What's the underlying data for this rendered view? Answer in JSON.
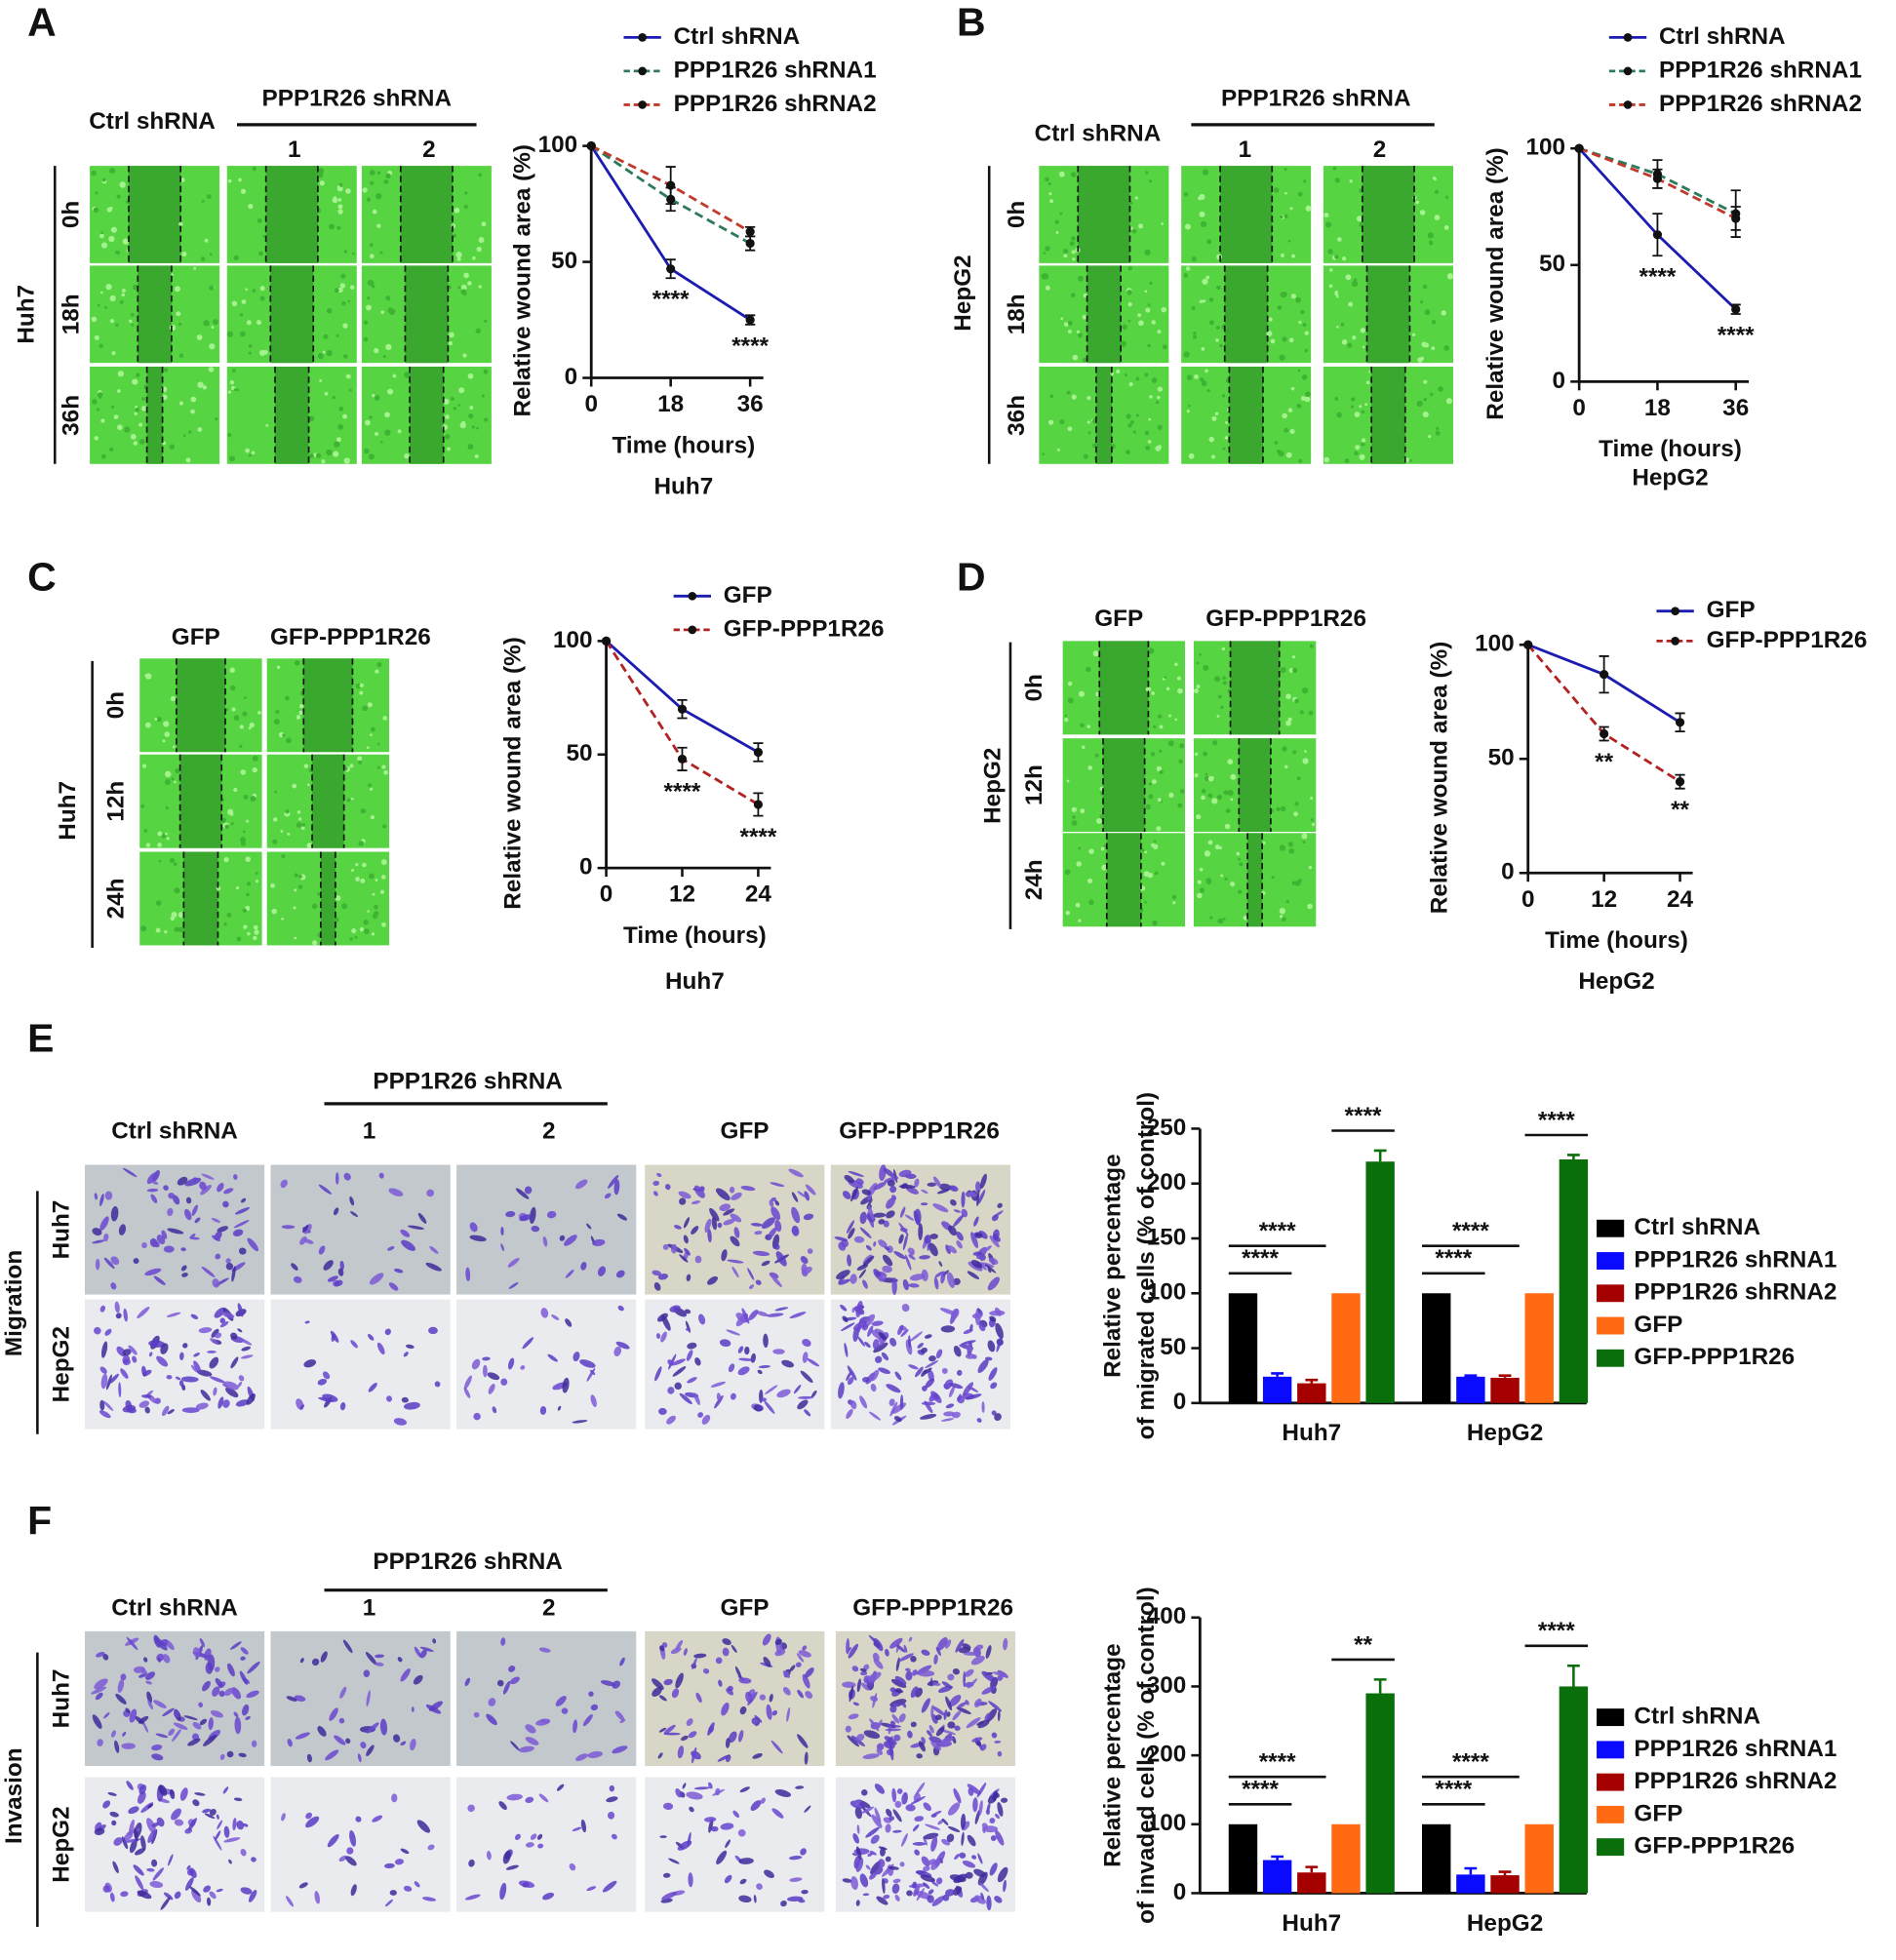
{
  "panels": [
    {
      "letter": "A",
      "cell_line": "Huh7",
      "group_header": "PPP1R26 shRNA",
      "columns": [
        "Ctrl shRNA",
        "1",
        "2"
      ],
      "rows": [
        "0h",
        "18h",
        "36h"
      ]
    },
    {
      "letter": "B",
      "cell_line": "HepG2",
      "group_header": "PPP1R26 shRNA",
      "columns": [
        "Ctrl shRNA",
        "1",
        "2"
      ],
      "rows": [
        "0h",
        "18h",
        "36h"
      ]
    },
    {
      "letter": "C",
      "cell_line": "Huh7",
      "columns": [
        "GFP",
        "GFP-PPP1R26"
      ],
      "rows": [
        "0h",
        "12h",
        "24h"
      ]
    },
    {
      "letter": "D",
      "cell_line": "HepG2",
      "columns": [
        "GFP",
        "GFP-PPP1R26"
      ],
      "rows": [
        "0h",
        "12h",
        "24h"
      ]
    },
    {
      "letter": "E",
      "assay": "Migration",
      "group_header": "PPP1R26 shRNA",
      "columns": [
        "Ctrl shRNA",
        "1",
        "2",
        "GFP",
        "GFP-PPP1R26"
      ],
      "rows": [
        "Huh7",
        "HepG2"
      ]
    },
    {
      "letter": "F",
      "assay": "Invasion",
      "group_header": "PPP1R26 shRNA",
      "columns": [
        "Ctrl shRNA",
        "1",
        "2",
        "GFP",
        "GFP-PPP1R26"
      ],
      "rows": [
        "Huh7",
        "HepG2"
      ]
    }
  ],
  "chart_data": [
    {
      "type": "line",
      "subtitle": "Huh7",
      "xlabel": "Time (hours)",
      "ylabel": "Relative wound area (%)",
      "x": [
        0,
        18,
        36
      ],
      "xlim": [
        0,
        39
      ],
      "xticks": [
        0,
        18,
        36
      ],
      "ylim": [
        0,
        100
      ],
      "yticks": [
        0,
        50,
        100
      ],
      "series": [
        {
          "name": "Ctrl shRNA",
          "color": "#1c1cb0",
          "line_style": "solid",
          "values": [
            100,
            47,
            25
          ],
          "errors": [
            0,
            4,
            2
          ]
        },
        {
          "name": "PPP1R26 shRNA1",
          "color": "#2d7a5a",
          "line_style": "dashed",
          "values": [
            100,
            77,
            58
          ],
          "errors": [
            0,
            5,
            3
          ]
        },
        {
          "name": "PPP1R26 shRNA2",
          "color": "#c0392b",
          "line_style": "dashed",
          "values": [
            100,
            83,
            63
          ],
          "errors": [
            0,
            8,
            2
          ]
        }
      ],
      "annotations": [
        {
          "x": 18,
          "text": "****"
        },
        {
          "x": 36,
          "text": "****"
        }
      ]
    },
    {
      "type": "line",
      "subtitle": "HepG2",
      "xlabel": "Time (hours)",
      "ylabel": "Relative wound area (%)",
      "x": [
        0,
        18,
        36
      ],
      "xlim": [
        0,
        39
      ],
      "xticks": [
        0,
        18,
        36
      ],
      "ylim": [
        0,
        100
      ],
      "yticks": [
        0,
        50,
        100
      ],
      "series": [
        {
          "name": "Ctrl shRNA",
          "color": "#1c1cb0",
          "line_style": "solid",
          "values": [
            100,
            63,
            31
          ],
          "errors": [
            0,
            9,
            2
          ]
        },
        {
          "name": "PPP1R26 shRNA1",
          "color": "#2d7a5a",
          "line_style": "dashed",
          "values": [
            100,
            89,
            72
          ],
          "errors": [
            0,
            6,
            10
          ]
        },
        {
          "name": "PPP1R26 shRNA2",
          "color": "#c0392b",
          "line_style": "dashed",
          "values": [
            100,
            87,
            70
          ],
          "errors": [
            0,
            4,
            5
          ]
        }
      ],
      "annotations": [
        {
          "x": 18,
          "text": "****"
        },
        {
          "x": 36,
          "text": "****"
        }
      ]
    },
    {
      "type": "line",
      "subtitle": "Huh7",
      "xlabel": "Time (hours)",
      "ylabel": "Relative wound area (%)",
      "x": [
        0,
        12,
        24
      ],
      "xlim": [
        0,
        26
      ],
      "xticks": [
        0,
        12,
        24
      ],
      "ylim": [
        0,
        100
      ],
      "yticks": [
        0,
        50,
        100
      ],
      "series": [
        {
          "name": "GFP",
          "color": "#1c1cb0",
          "line_style": "solid",
          "values": [
            100,
            70,
            51
          ],
          "errors": [
            0,
            4,
            4
          ]
        },
        {
          "name": "GFP-PPP1R26",
          "color": "#b22222",
          "line_style": "dashed",
          "values": [
            100,
            48,
            28
          ],
          "errors": [
            0,
            5,
            5
          ]
        }
      ],
      "annotations": [
        {
          "x": 12,
          "text": "****"
        },
        {
          "x": 24,
          "text": "****"
        }
      ]
    },
    {
      "type": "line",
      "subtitle": "HepG2",
      "xlabel": "Time (hours)",
      "ylabel": "Relative wound area (%)",
      "x": [
        0,
        12,
        24
      ],
      "xlim": [
        0,
        26
      ],
      "xticks": [
        0,
        12,
        24
      ],
      "ylim": [
        0,
        100
      ],
      "yticks": [
        0,
        50,
        100
      ],
      "series": [
        {
          "name": "GFP",
          "color": "#1c1cb0",
          "line_style": "solid",
          "values": [
            100,
            87,
            66
          ],
          "errors": [
            0,
            8,
            4
          ]
        },
        {
          "name": "GFP-PPP1R26",
          "color": "#b22222",
          "line_style": "dashed",
          "values": [
            100,
            61,
            40
          ],
          "errors": [
            0,
            3,
            3
          ]
        }
      ],
      "annotations": [
        {
          "x": 12,
          "text": "**"
        },
        {
          "x": 24,
          "text": "**"
        }
      ]
    },
    {
      "type": "bar",
      "ylabel": [
        "Relative percentage",
        "of migrated cells (% of control)"
      ],
      "categories": [
        "Huh7",
        "HepG2"
      ],
      "ylim": [
        0,
        250
      ],
      "yticks": [
        0,
        50,
        100,
        150,
        200,
        250
      ],
      "series": [
        {
          "name": "Ctrl shRNA",
          "color": "#000000",
          "values": [
            100,
            100
          ],
          "errors": [
            0,
            0
          ]
        },
        {
          "name": "PPP1R26 shRNA1",
          "color": "#0a0aff",
          "values": [
            24,
            24
          ],
          "errors": [
            3,
            1
          ]
        },
        {
          "name": "PPP1R26 shRNA2",
          "color": "#a50000",
          "values": [
            18,
            23
          ],
          "errors": [
            3,
            2
          ]
        },
        {
          "name": "GFP",
          "color": "#ff6a13",
          "values": [
            100,
            100
          ],
          "errors": [
            0,
            0
          ]
        },
        {
          "name": "GFP-PPP1R26",
          "color": "#0a6e0a",
          "values": [
            220,
            222
          ],
          "errors": [
            10,
            4
          ]
        }
      ],
      "comparisons": [
        {
          "category": "Huh7",
          "from": "Ctrl shRNA",
          "to": "PPP1R26 shRNA1",
          "label": "****"
        },
        {
          "category": "Huh7",
          "from": "Ctrl shRNA",
          "to": "PPP1R26 shRNA2",
          "label": "****"
        },
        {
          "category": "Huh7",
          "from": "GFP",
          "to": "GFP-PPP1R26",
          "label": "****"
        },
        {
          "category": "HepG2",
          "from": "Ctrl shRNA",
          "to": "PPP1R26 shRNA1",
          "label": "****"
        },
        {
          "category": "HepG2",
          "from": "Ctrl shRNA",
          "to": "PPP1R26 shRNA2",
          "label": "****"
        },
        {
          "category": "HepG2",
          "from": "GFP",
          "to": "GFP-PPP1R26",
          "label": "****"
        }
      ]
    },
    {
      "type": "bar",
      "ylabel": [
        "Relative percentage",
        "of invaded cells (% of control)"
      ],
      "categories": [
        "Huh7",
        "HepG2"
      ],
      "ylim": [
        0,
        400
      ],
      "yticks": [
        0,
        100,
        200,
        300,
        400
      ],
      "series": [
        {
          "name": "Ctrl shRNA",
          "color": "#000000",
          "values": [
            100,
            100
          ],
          "errors": [
            0,
            0
          ]
        },
        {
          "name": "PPP1R26 shRNA1",
          "color": "#0a0aff",
          "values": [
            48,
            27
          ],
          "errors": [
            5,
            9
          ]
        },
        {
          "name": "PPP1R26 shRNA2",
          "color": "#a50000",
          "values": [
            30,
            26
          ],
          "errors": [
            8,
            5
          ]
        },
        {
          "name": "GFP",
          "color": "#ff6a13",
          "values": [
            100,
            100
          ],
          "errors": [
            0,
            0
          ]
        },
        {
          "name": "GFP-PPP1R26",
          "color": "#0a6e0a",
          "values": [
            290,
            300
          ],
          "errors": [
            20,
            30
          ]
        }
      ],
      "comparisons": [
        {
          "category": "Huh7",
          "from": "Ctrl shRNA",
          "to": "PPP1R26 shRNA1",
          "label": "****"
        },
        {
          "category": "Huh7",
          "from": "Ctrl shRNA",
          "to": "PPP1R26 shRNA2",
          "label": "****"
        },
        {
          "category": "Huh7",
          "from": "GFP",
          "to": "GFP-PPP1R26",
          "label": "**"
        },
        {
          "category": "HepG2",
          "from": "Ctrl shRNA",
          "to": "PPP1R26 shRNA1",
          "label": "****"
        },
        {
          "category": "HepG2",
          "from": "Ctrl shRNA",
          "to": "PPP1R26 shRNA2",
          "label": "****"
        },
        {
          "category": "HepG2",
          "from": "GFP",
          "to": "GFP-PPP1R26",
          "label": "****"
        }
      ]
    }
  ]
}
